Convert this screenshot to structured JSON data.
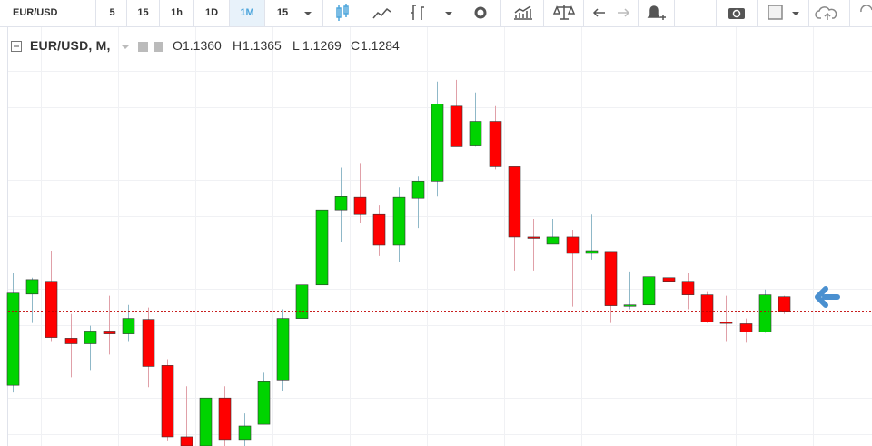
{
  "toolbar": {
    "symbol": "EUR/USD",
    "intervals": [
      "5",
      "15",
      "1h",
      "1D",
      "1M",
      "15"
    ],
    "active_interval": 4
  },
  "legend": {
    "title": "EUR/USD, M,",
    "ohlc": [
      {
        "key": "O",
        "value": "1.1360"
      },
      {
        "key": "H",
        "value": "1.1365"
      },
      {
        "key": "L",
        "value": "1.1269"
      },
      {
        "key": "C",
        "value": "1.1284"
      }
    ]
  },
  "chart_data": {
    "type": "candlestick",
    "open": [
      1.0895,
      1.1374,
      1.1441,
      1.1142,
      1.1113,
      1.118,
      1.1165,
      1.1241,
      1.0999,
      1.0624,
      1.0576,
      1.0828,
      1.061,
      1.069,
      1.0923,
      1.1246,
      1.1422,
      1.1816,
      1.1883,
      1.1792,
      1.1631,
      1.1878,
      1.1968,
      1.2362,
      1.2153,
      1.2282,
      1.2044,
      1.1674,
      1.1636,
      1.1674,
      1.1588,
      1.1598,
      1.1313,
      1.1317,
      1.146,
      1.1441,
      1.137,
      1.1227,
      1.1218,
      1.1175,
      1.136
    ],
    "high": [
      1.1484,
      1.146,
      1.1602,
      1.127,
      1.1208,
      1.1365,
      1.1317,
      1.1303,
      1.1032,
      1.089,
      1.0828,
      1.089,
      1.0747,
      1.0961,
      1.1294,
      1.146,
      1.1826,
      1.2039,
      1.2063,
      1.184,
      1.1935,
      1.1992,
      1.2491,
      1.25,
      1.2434,
      1.2362,
      1.2044,
      1.1769,
      1.1769,
      1.1712,
      1.1792,
      1.1598,
      1.1493,
      1.1484,
      1.1555,
      1.1484,
      1.1389,
      1.1365,
      1.1246,
      1.1398,
      1.1365
    ],
    "low": [
      1.0857,
      1.1222,
      1.1127,
      1.0937,
      1.0975,
      1.1056,
      1.1127,
      1.0885,
      1.0605,
      1.0576,
      1.0576,
      1.0576,
      1.0576,
      1.069,
      1.0866,
      1.1137,
      1.1317,
      1.165,
      1.1745,
      1.1574,
      1.1545,
      1.1721,
      1.1887,
      1.2149,
      1.2149,
      1.203,
      1.1498,
      1.1498,
      1.1636,
      1.1308,
      1.1555,
      1.1222,
      1.1294,
      1.1313,
      1.1303,
      1.1294,
      1.1222,
      1.1127,
      1.1118,
      1.117,
      1.1269
    ],
    "close": [
      1.1379,
      1.145,
      1.1146,
      1.1113,
      1.118,
      1.1165,
      1.1246,
      1.0994,
      1.0624,
      1.0576,
      1.0828,
      1.061,
      1.0681,
      1.0918,
      1.1246,
      1.1422,
      1.1816,
      1.1887,
      1.1792,
      1.1631,
      1.1883,
      1.1968,
      1.2372,
      1.2149,
      1.2282,
      1.2044,
      1.1674,
      1.1669,
      1.1674,
      1.1588,
      1.1602,
      1.1313,
      1.1317,
      1.1465,
      1.1441,
      1.137,
      1.1227,
      1.1222,
      1.1175,
      1.137,
      1.1284
    ],
    "ylim": [
      1.0576,
      1.2738
    ],
    "up_color": "#00d400",
    "down_color": "#ff0000",
    "price_line_color": "#c00000",
    "grid": true
  }
}
